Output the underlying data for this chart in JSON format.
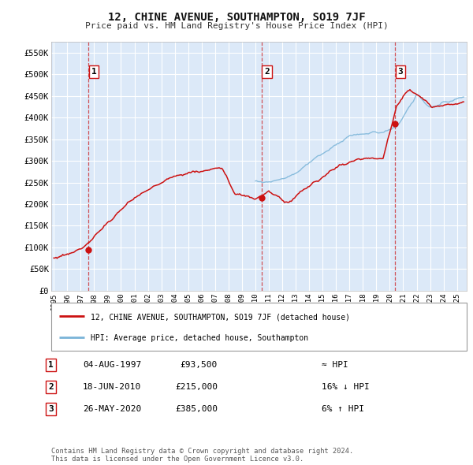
{
  "title": "12, CHINE AVENUE, SOUTHAMPTON, SO19 7JF",
  "subtitle": "Price paid vs. HM Land Registry's House Price Index (HPI)",
  "ylabel_ticks": [
    "£0",
    "£50K",
    "£100K",
    "£150K",
    "£200K",
    "£250K",
    "£300K",
    "£350K",
    "£400K",
    "£450K",
    "£500K",
    "£550K"
  ],
  "ytick_values": [
    0,
    50000,
    100000,
    150000,
    200000,
    250000,
    300000,
    350000,
    400000,
    450000,
    500000,
    550000
  ],
  "ylim": [
    0,
    575000
  ],
  "xlim_start": 1994.8,
  "xlim_end": 2025.7,
  "background_color": "#dce9f8",
  "grid_color": "#ffffff",
  "sale_dates": [
    1997.587,
    2010.462,
    2020.401
  ],
  "sale_prices": [
    93500,
    215000,
    385000
  ],
  "sale_labels": [
    "1",
    "2",
    "3"
  ],
  "legend_house_label": "12, CHINE AVENUE, SOUTHAMPTON, SO19 7JF (detached house)",
  "legend_hpi_label": "HPI: Average price, detached house, Southampton",
  "table_rows": [
    [
      "1",
      "04-AUG-1997",
      "£93,500",
      "≈ HPI"
    ],
    [
      "2",
      "18-JUN-2010",
      "£215,000",
      "16% ↓ HPI"
    ],
    [
      "3",
      "26-MAY-2020",
      "£385,000",
      "6% ↑ HPI"
    ]
  ],
  "footer": "Contains HM Land Registry data © Crown copyright and database right 2024.\nThis data is licensed under the Open Government Licence v3.0.",
  "hpi_line_color": "#7ab4d8",
  "house_line_color": "#cc1111",
  "dot_color": "#cc1111",
  "vline_color_sale1": "#cc1111",
  "vline_color_others": "#cc1111"
}
